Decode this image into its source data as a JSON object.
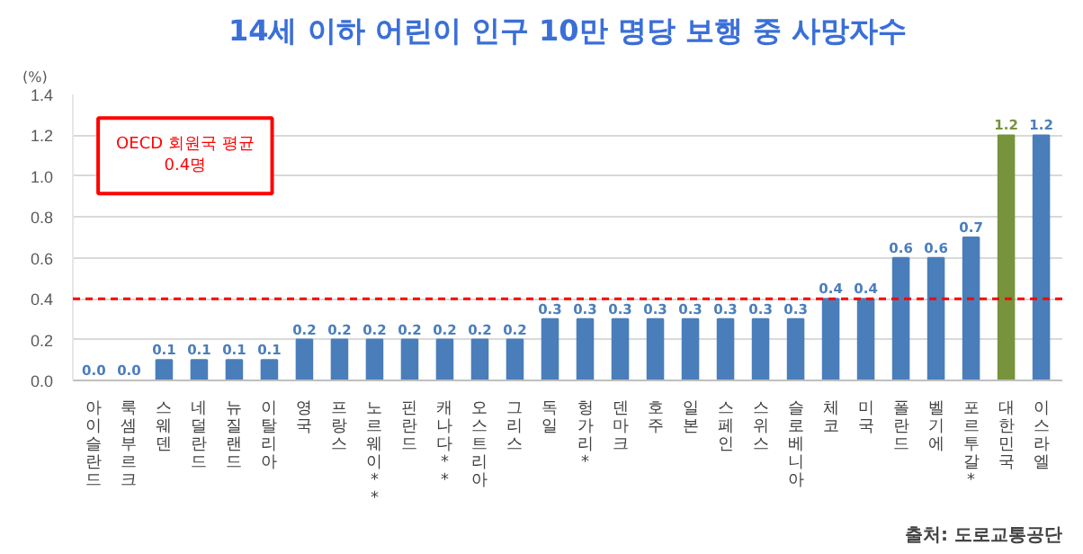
{
  "chart_data": {
    "type": "bar",
    "title": "14세 이하 어린이 인구 10만 명당 보행 중 사망자수",
    "ylabel": "(%)",
    "categories": [
      "아이슬란드",
      "룩셈부르크",
      "스웨덴",
      "네덜란드",
      "뉴질랜드",
      "이탈리아",
      "영국",
      "프랑스",
      "노르웨이**",
      "핀란드",
      "캐나다**",
      "오스트리아",
      "그리스",
      "독일",
      "헝가리*",
      "덴마크",
      "호주",
      "일본",
      "스페인",
      "스위스",
      "슬로베니아",
      "체코",
      "미국",
      "폴란드",
      "벨기에",
      "포르투갈*",
      "대한민국",
      "이스라엘"
    ],
    "values": [
      0.0,
      0.0,
      0.1,
      0.1,
      0.1,
      0.1,
      0.2,
      0.2,
      0.2,
      0.2,
      0.2,
      0.2,
      0.2,
      0.3,
      0.3,
      0.3,
      0.3,
      0.3,
      0.3,
      0.3,
      0.3,
      0.4,
      0.4,
      0.6,
      0.6,
      0.7,
      1.2,
      1.2
    ],
    "colors": [
      "#4a7ebb",
      "#4a7ebb",
      "#4a7ebb",
      "#4a7ebb",
      "#4a7ebb",
      "#4a7ebb",
      "#4a7ebb",
      "#4a7ebb",
      "#4a7ebb",
      "#4a7ebb",
      "#4a7ebb",
      "#4a7ebb",
      "#4a7ebb",
      "#4a7ebb",
      "#4a7ebb",
      "#4a7ebb",
      "#4a7ebb",
      "#4a7ebb",
      "#4a7ebb",
      "#4a7ebb",
      "#4a7ebb",
      "#4a7ebb",
      "#4a7ebb",
      "#4a7ebb",
      "#4a7ebb",
      "#4a7ebb",
      "#77933c",
      "#4a7ebb"
    ],
    "value_labels": [
      "0.0",
      "0.0",
      "0.1",
      "0.1",
      "0.1",
      "0.1",
      "0.2",
      "0.2",
      "0.2",
      "0.2",
      "0.2",
      "0.2",
      "0.2",
      "0.3",
      "0.3",
      "0.3",
      "0.3",
      "0.3",
      "0.3",
      "0.3",
      "0.3",
      "0.4",
      "0.4",
      "0.6",
      "0.6",
      "0.7",
      "1.2",
      "1.2"
    ],
    "ylim": [
      0,
      1.4
    ],
    "yticks": [
      "0.0",
      "0.2",
      "0.4",
      "0.6",
      "0.8",
      "1.0",
      "1.2",
      "1.4"
    ],
    "grid": "y",
    "ref_lines": [
      {
        "axis": "y",
        "value": 0.4,
        "label": "OECD 회원국 평균\n0.4명",
        "color": "#ff0000",
        "line_style": "dashed"
      }
    ],
    "annotations": [
      "출처: 도로교통공단"
    ]
  }
}
